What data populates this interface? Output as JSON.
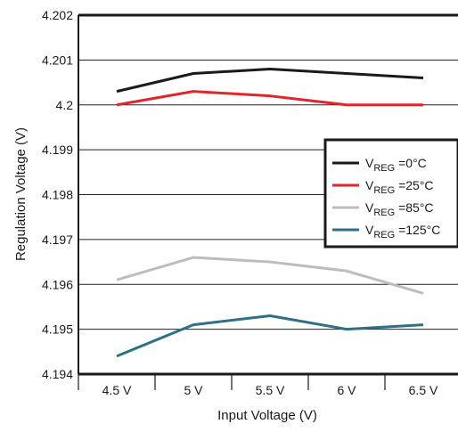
{
  "chart_data": {
    "type": "line",
    "xlabel": "Input Voltage (V)",
    "ylabel": "Regulation Voltage (V)",
    "categories": [
      "4.5 V",
      "5 V",
      "5.5 V",
      "6 V",
      "6.5 V"
    ],
    "ylim": [
      4.194,
      4.202
    ],
    "yticks": [
      "4.194",
      "4.195",
      "4.196",
      "4.197",
      "4.198",
      "4.199",
      "4.2",
      "4.201",
      "4.202"
    ],
    "grid": "horizontal",
    "legend_position": "right",
    "series": [
      {
        "name": "V_REG = 0°C",
        "label_main": "V",
        "label_sub": "REG",
        "label_rest": " =0°C",
        "color": "#1a1a1a",
        "values": [
          4.2003,
          4.2007,
          4.2008,
          4.2007,
          4.2006
        ]
      },
      {
        "name": "V_REG = 25°C",
        "label_main": "V",
        "label_sub": "REG",
        "label_rest": " =25°C",
        "color": "#e0262b",
        "values": [
          4.2,
          4.2003,
          4.2002,
          4.2,
          4.2
        ]
      },
      {
        "name": "V_REG = 85°C",
        "label_main": "V",
        "label_sub": "REG",
        "label_rest": " =85°C",
        "color": "#bdbdbd",
        "values": [
          4.1961,
          4.1966,
          4.1965,
          4.1963,
          4.1958
        ]
      },
      {
        "name": "V_REG = 125°C",
        "label_main": "V",
        "label_sub": "REG",
        "label_rest": " =125°C",
        "color": "#2f6f87",
        "values": [
          4.1944,
          4.1951,
          4.1953,
          4.195,
          4.1951
        ]
      }
    ]
  }
}
